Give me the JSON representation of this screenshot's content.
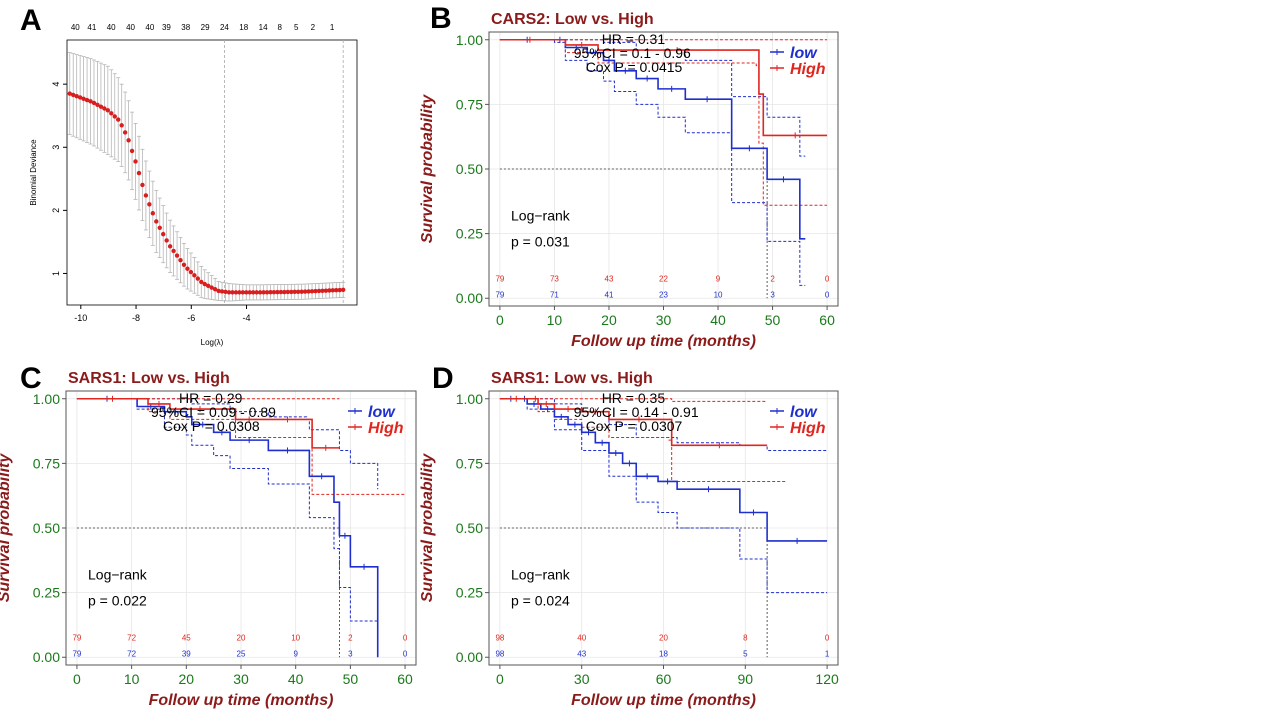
{
  "panel_letters": [
    "A",
    "B",
    "C",
    "D"
  ],
  "colors": {
    "low": "#1f2fcf",
    "high": "#e0261f",
    "title": "#8b1a1a",
    "tick": "#1a7a1a",
    "dot": "#d81e1e"
  },
  "chart_data": [
    {
      "id": "A",
      "type": "scatter",
      "xlabel": "Log(λ)",
      "ylabel": "Binomial Deviance",
      "xlim": [
        -10.5,
        0.0
      ],
      "ylim": [
        0.5,
        4.7
      ],
      "x_ticks": [
        -10,
        -8,
        -6,
        -4
      ],
      "y_ticks": [
        1,
        2,
        3,
        4
      ],
      "top_labels": [
        "40",
        "41",
        "40",
        "40",
        "40",
        "39",
        "38",
        "29",
        "24",
        "18",
        "14",
        "8",
        "5",
        "2",
        "1"
      ],
      "top_label_x": [
        -10.2,
        -9.6,
        -8.9,
        -8.2,
        -7.5,
        -6.9,
        -6.2,
        -5.5,
        -4.8,
        -4.1,
        -3.4,
        -2.8,
        -2.2,
        -1.6,
        -0.9
      ],
      "vlines": [
        -4.8,
        -0.5
      ],
      "curve": [
        [
          -10.4,
          3.85
        ],
        [
          -9.6,
          3.72
        ],
        [
          -9.0,
          3.58
        ],
        [
          -8.6,
          3.42
        ],
        [
          -8.3,
          3.15
        ],
        [
          -8.0,
          2.75
        ],
        [
          -7.7,
          2.3
        ],
        [
          -7.3,
          1.85
        ],
        [
          -6.8,
          1.45
        ],
        [
          -6.2,
          1.1
        ],
        [
          -5.6,
          0.85
        ],
        [
          -5.0,
          0.72
        ],
        [
          -4.6,
          0.7
        ],
        [
          -3.5,
          0.7
        ],
        [
          -2.0,
          0.71
        ],
        [
          -0.5,
          0.74
        ]
      ],
      "curve_err": [
        [
          -10.4,
          0.65
        ],
        [
          -9.0,
          0.7
        ],
        [
          -8.0,
          0.6
        ],
        [
          -7.0,
          0.45
        ],
        [
          -6.0,
          0.3
        ],
        [
          -5.0,
          0.15
        ],
        [
          -4.0,
          0.12
        ],
        [
          -0.5,
          0.12
        ]
      ]
    },
    {
      "id": "B",
      "type": "line",
      "title": "CARS2: Low vs. High",
      "xlabel": "Follow up time (months)",
      "ylabel": "Survival probability",
      "xlim": [
        -2,
        62
      ],
      "ylim": [
        -0.03,
        1.03
      ],
      "x_ticks": [
        0,
        10,
        20,
        30,
        40,
        50,
        60
      ],
      "y_ticks": [
        0.0,
        0.25,
        0.5,
        0.75,
        1.0
      ],
      "stats": [
        "HR = 0.31",
        "95%CI = 0.1 - 0.96",
        "Cox P = 0.0415"
      ],
      "test_lines": [
        "Log−rank",
        "p = 0.031"
      ],
      "legend": [
        "low",
        "High"
      ],
      "risk_times": [
        0,
        10,
        20,
        30,
        40,
        50,
        60
      ],
      "series": [
        {
          "name": "low",
          "color": "#1f2fcf",
          "risk": [
            "79",
            "71",
            "41",
            "23",
            "10",
            "3",
            "0"
          ],
          "points": [
            [
              0,
              1.0
            ],
            [
              10,
              1.0
            ],
            [
              12,
              0.97
            ],
            [
              16,
              0.95
            ],
            [
              19,
              0.92
            ],
            [
              21,
              0.88
            ],
            [
              25,
              0.85
            ],
            [
              29,
              0.81
            ],
            [
              34,
              0.77
            ],
            [
              42,
              0.77
            ],
            [
              42.5,
              0.58
            ],
            [
              49,
              0.58
            ],
            [
              49,
              0.46
            ],
            [
              55,
              0.46
            ],
            [
              55,
              0.23
            ],
            [
              56,
              0.23
            ]
          ],
          "upper": [
            [
              0,
              1.0
            ],
            [
              10,
              1.0
            ],
            [
              12,
              1.0
            ],
            [
              19,
              0.99
            ],
            [
              25,
              0.96
            ],
            [
              34,
              0.92
            ],
            [
              42,
              0.92
            ],
            [
              42.5,
              0.78
            ],
            [
              49,
              0.78
            ],
            [
              49,
              0.7
            ],
            [
              55,
              0.7
            ],
            [
              55,
              0.55
            ],
            [
              56,
              0.55
            ]
          ],
          "lower": [
            [
              0,
              1.0
            ],
            [
              10,
              0.99
            ],
            [
              12,
              0.92
            ],
            [
              16,
              0.88
            ],
            [
              19,
              0.84
            ],
            [
              21,
              0.8
            ],
            [
              25,
              0.75
            ],
            [
              29,
              0.7
            ],
            [
              34,
              0.64
            ],
            [
              42,
              0.64
            ],
            [
              42.5,
              0.37
            ],
            [
              49,
              0.37
            ],
            [
              49,
              0.22
            ],
            [
              55,
              0.22
            ],
            [
              55,
              0.05
            ],
            [
              56,
              0.05
            ]
          ]
        },
        {
          "name": "High",
          "color": "#e0261f",
          "risk": [
            "79",
            "73",
            "43",
            "22",
            "9",
            "2",
            "0"
          ],
          "points": [
            [
              0,
              1.0
            ],
            [
              11,
              1.0
            ],
            [
              12,
              0.98
            ],
            [
              18,
              0.96
            ],
            [
              47,
              0.96
            ],
            [
              47.5,
              0.79
            ],
            [
              48,
              0.79
            ],
            [
              48.3,
              0.63
            ],
            [
              60,
              0.63
            ]
          ],
          "upper": [
            [
              0,
              1.0
            ],
            [
              47,
              1.0
            ],
            [
              48.3,
              1.0
            ],
            [
              60,
              1.0
            ]
          ],
          "lower": [
            [
              0,
              1.0
            ],
            [
              12,
              0.95
            ],
            [
              18,
              0.91
            ],
            [
              47,
              0.9
            ],
            [
              47.5,
              0.6
            ],
            [
              48,
              0.6
            ],
            [
              48.3,
              0.36
            ],
            [
              60,
              0.36
            ]
          ]
        }
      ]
    },
    {
      "id": "C",
      "type": "line",
      "title": "SARS1: Low vs. High",
      "xlabel": "Follow up time (months)",
      "ylabel": "Survival probability",
      "xlim": [
        -2,
        62
      ],
      "ylim": [
        -0.03,
        1.03
      ],
      "x_ticks": [
        0,
        10,
        20,
        30,
        40,
        50,
        60
      ],
      "y_ticks": [
        0.0,
        0.25,
        0.5,
        0.75,
        1.0
      ],
      "stats": [
        "HR = 0.29",
        "95%CI = 0.09 - 0.89",
        "Cox P = 0.0308"
      ],
      "test_lines": [
        "Log−rank",
        "p = 0.022"
      ],
      "legend": [
        "low",
        "High"
      ],
      "risk_times": [
        0,
        10,
        20,
        30,
        40,
        50,
        60
      ],
      "series": [
        {
          "name": "low",
          "color": "#1f2fcf",
          "risk": [
            "79",
            "72",
            "39",
            "25",
            "9",
            "3",
            "0"
          ],
          "points": [
            [
              0,
              1.0
            ],
            [
              11,
              1.0
            ],
            [
              11,
              0.97
            ],
            [
              16,
              0.95
            ],
            [
              20,
              0.93
            ],
            [
              21,
              0.9
            ],
            [
              25,
              0.87
            ],
            [
              28,
              0.84
            ],
            [
              35,
              0.8
            ],
            [
              42,
              0.8
            ],
            [
              42.5,
              0.7
            ],
            [
              47,
              0.7
            ],
            [
              47,
              0.6
            ],
            [
              48,
              0.6
            ],
            [
              48,
              0.47
            ],
            [
              50,
              0.47
            ],
            [
              50,
              0.35
            ],
            [
              55,
              0.35
            ],
            [
              55,
              0.0
            ]
          ],
          "upper": [
            [
              0,
              1.0
            ],
            [
              11,
              1.0
            ],
            [
              16,
              1.0
            ],
            [
              21,
              0.98
            ],
            [
              28,
              0.95
            ],
            [
              35,
              0.93
            ],
            [
              42,
              0.92
            ],
            [
              42.5,
              0.88
            ],
            [
              47,
              0.88
            ],
            [
              48,
              0.8
            ],
            [
              50,
              0.75
            ],
            [
              55,
              0.65
            ]
          ],
          "lower": [
            [
              0,
              1.0
            ],
            [
              11,
              0.96
            ],
            [
              16,
              0.89
            ],
            [
              20,
              0.86
            ],
            [
              21,
              0.82
            ],
            [
              25,
              0.78
            ],
            [
              28,
              0.73
            ],
            [
              35,
              0.67
            ],
            [
              42,
              0.67
            ],
            [
              42.5,
              0.54
            ],
            [
              47,
              0.54
            ],
            [
              47,
              0.42
            ],
            [
              48,
              0.42
            ],
            [
              48,
              0.27
            ],
            [
              50,
              0.27
            ],
            [
              50,
              0.14
            ],
            [
              55,
              0.14
            ],
            [
              55,
              0.0
            ]
          ]
        },
        {
          "name": "High",
          "color": "#e0261f",
          "risk": [
            "79",
            "72",
            "45",
            "20",
            "10",
            "2",
            "0"
          ],
          "points": [
            [
              0,
              1.0
            ],
            [
              13,
              1.0
            ],
            [
              13,
              0.98
            ],
            [
              17,
              0.96
            ],
            [
              28,
              0.96
            ],
            [
              29,
              0.92
            ],
            [
              34,
              0.92
            ],
            [
              43,
              0.92
            ],
            [
              43,
              0.81
            ],
            [
              48,
              0.81
            ]
          ],
          "upper": [
            [
              0,
              1.0
            ],
            [
              48,
              1.0
            ]
          ],
          "lower": [
            [
              0,
              1.0
            ],
            [
              13,
              0.95
            ],
            [
              17,
              0.92
            ],
            [
              29,
              0.85
            ],
            [
              43,
              0.83
            ],
            [
              43,
              0.63
            ],
            [
              48,
              0.63
            ],
            [
              60,
              0.63
            ]
          ]
        }
      ]
    },
    {
      "id": "D",
      "type": "line",
      "title": "SARS1: Low vs. High",
      "xlabel": "Follow up time (months)",
      "ylabel": "Survival probability",
      "xlim": [
        -4,
        124
      ],
      "ylim": [
        -0.03,
        1.03
      ],
      "x_ticks": [
        0,
        30,
        60,
        90,
        120
      ],
      "y_ticks": [
        0.0,
        0.25,
        0.5,
        0.75,
        1.0
      ],
      "stats": [
        "HR = 0.35",
        "95%CI = 0.14 - 0.91",
        "Cox P = 0.0307"
      ],
      "test_lines": [
        "Log−rank",
        "p = 0.024"
      ],
      "legend": [
        "low",
        "High"
      ],
      "risk_times": [
        0,
        30,
        60,
        90,
        120
      ],
      "series": [
        {
          "name": "low",
          "color": "#1f2fcf",
          "risk": [
            "98",
            "43",
            "18",
            "5",
            "1"
          ],
          "points": [
            [
              0,
              1.0
            ],
            [
              8,
              1.0
            ],
            [
              10,
              0.98
            ],
            [
              15,
              0.96
            ],
            [
              20,
              0.93
            ],
            [
              25,
              0.9
            ],
            [
              30,
              0.87
            ],
            [
              35,
              0.83
            ],
            [
              40,
              0.79
            ],
            [
              45,
              0.75
            ],
            [
              50,
              0.7
            ],
            [
              58,
              0.68
            ],
            [
              65,
              0.65
            ],
            [
              88,
              0.65
            ],
            [
              88,
              0.56
            ],
            [
              98,
              0.56
            ],
            [
              98,
              0.45
            ],
            [
              120,
              0.45
            ]
          ],
          "upper": [
            [
              0,
              1.0
            ],
            [
              10,
              1.0
            ],
            [
              20,
              0.98
            ],
            [
              30,
              0.95
            ],
            [
              40,
              0.9
            ],
            [
              50,
              0.85
            ],
            [
              65,
              0.83
            ],
            [
              88,
              0.82
            ],
            [
              98,
              0.8
            ],
            [
              120,
              0.8
            ]
          ],
          "lower": [
            [
              0,
              1.0
            ],
            [
              10,
              0.96
            ],
            [
              20,
              0.88
            ],
            [
              30,
              0.8
            ],
            [
              40,
              0.7
            ],
            [
              50,
              0.6
            ],
            [
              58,
              0.56
            ],
            [
              65,
              0.5
            ],
            [
              88,
              0.5
            ],
            [
              88,
              0.38
            ],
            [
              98,
              0.38
            ],
            [
              98,
              0.25
            ],
            [
              120,
              0.25
            ]
          ]
        },
        {
          "name": "High",
          "color": "#e0261f",
          "risk": [
            "98",
            "40",
            "20",
            "8",
            "0"
          ],
          "points": [
            [
              0,
              1.0
            ],
            [
              12,
              1.0
            ],
            [
              14,
              0.98
            ],
            [
              20,
              0.96
            ],
            [
              30,
              0.95
            ],
            [
              40,
              0.92
            ],
            [
              62,
              0.92
            ],
            [
              63,
              0.82
            ],
            [
              98,
              0.82
            ]
          ],
          "upper": [
            [
              0,
              1.0
            ],
            [
              62,
              1.0
            ],
            [
              63,
              0.99
            ],
            [
              98,
              0.99
            ]
          ],
          "lower": [
            [
              0,
              1.0
            ],
            [
              14,
              0.95
            ],
            [
              20,
              0.92
            ],
            [
              30,
              0.89
            ],
            [
              40,
              0.85
            ],
            [
              62,
              0.84
            ],
            [
              63,
              0.68
            ],
            [
              98,
              0.68
            ],
            [
              105,
              0.68
            ]
          ]
        }
      ]
    }
  ]
}
